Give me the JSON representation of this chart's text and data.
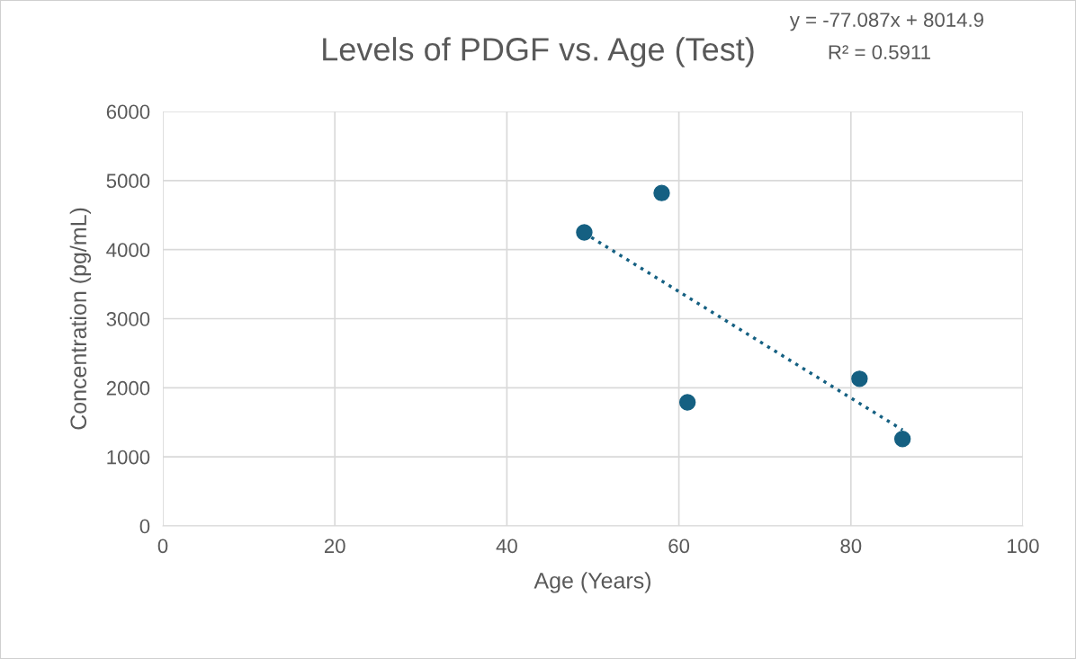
{
  "chart_data": {
    "type": "scatter",
    "title": "Levels of PDGF vs. Age (Test)",
    "xlabel": "Age (Years)",
    "ylabel": "Concentration (pg/mL)",
    "annotations": [
      "y = -77.087x + 8014.9",
      "R² = 0.5911"
    ],
    "series": [
      {
        "color": "#156082",
        "x": [
          49,
          58,
          61,
          81,
          86
        ],
        "values": [
          4250,
          4820,
          1790,
          2130,
          1260
        ],
        "marker": "circle"
      },
      {
        "type": "line",
        "color": "#156082",
        "x": [
          49,
          86
        ],
        "values": [
          4240,
          1390
        ],
        "marker": "none",
        "line_style": "dotted"
      }
    ],
    "xlim": [
      0,
      100
    ],
    "xticks": [
      0,
      20,
      40,
      60,
      80,
      100
    ],
    "ylim": [
      0,
      6000
    ],
    "yticks": [
      0,
      1000,
      2000,
      3000,
      4000,
      5000,
      6000
    ],
    "grid": true,
    "legend": false
  }
}
